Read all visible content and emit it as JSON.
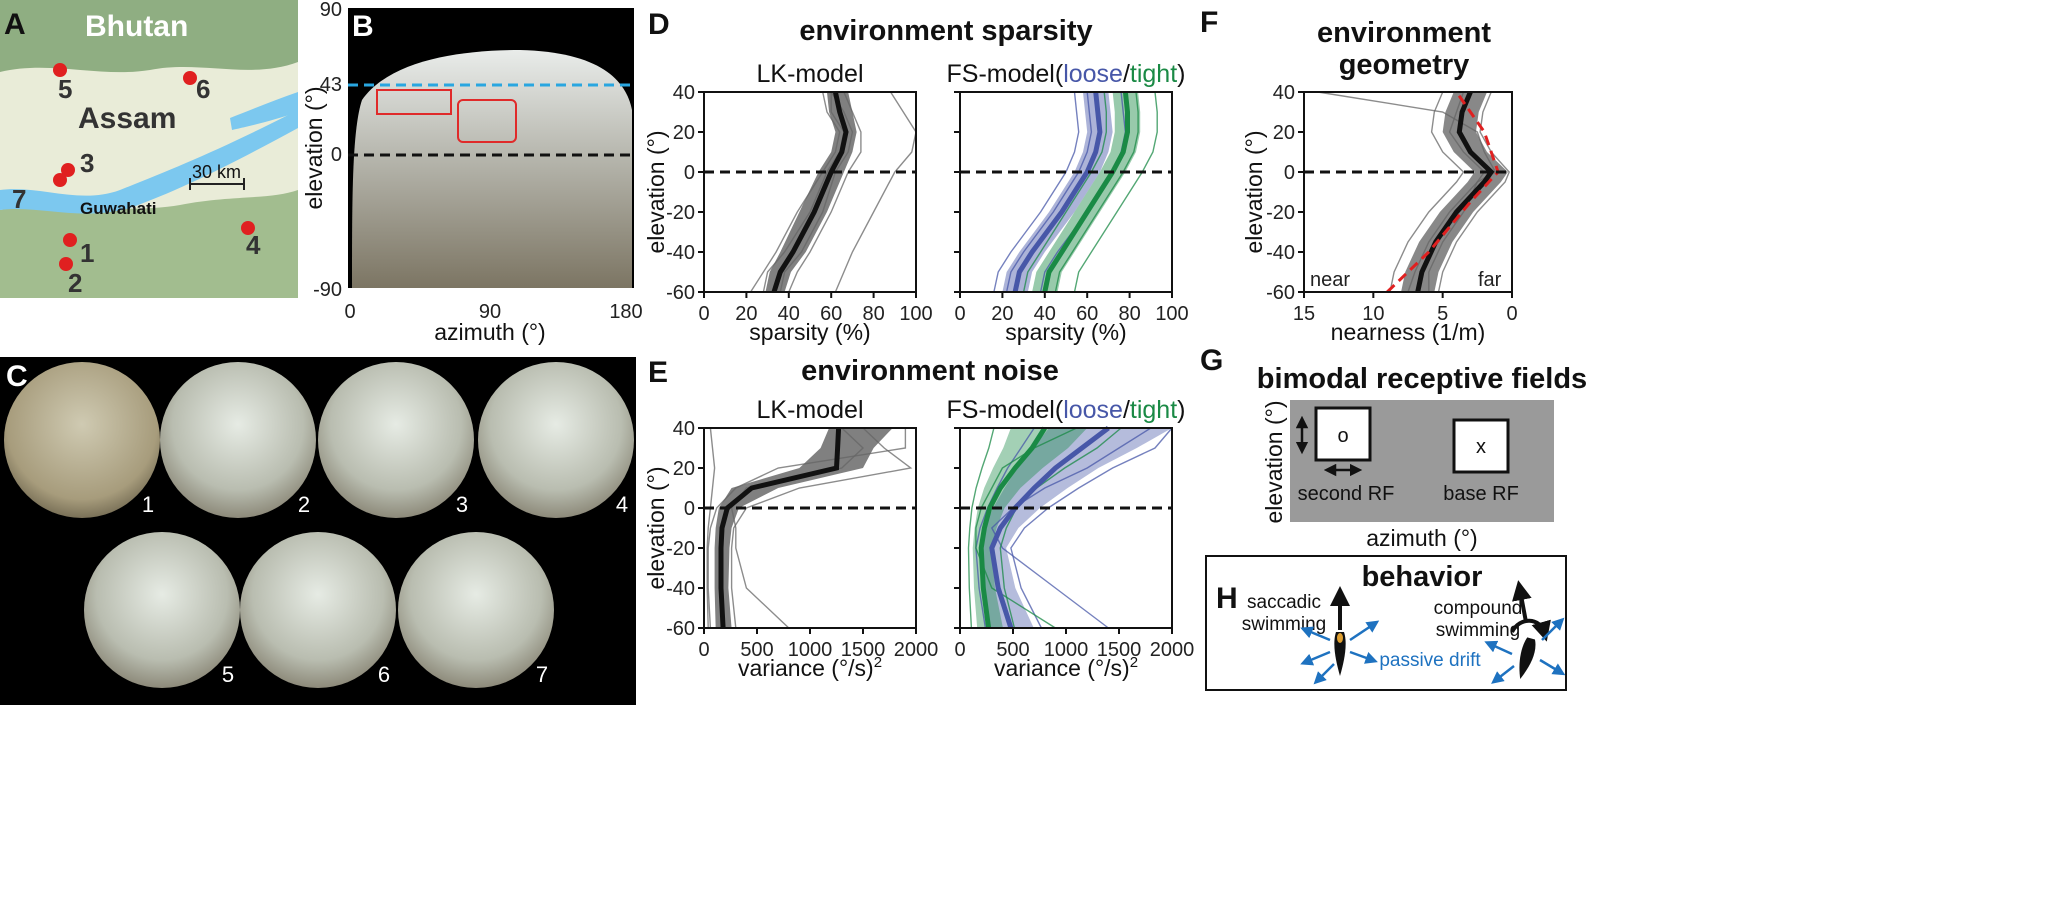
{
  "panels": {
    "A": {
      "label": "A",
      "regions": [
        "Bhutan",
        "Assam"
      ],
      "city": "Guwahati",
      "scale_bar": "30 km",
      "sites": [
        "1",
        "2",
        "3",
        "4",
        "5",
        "6",
        "7"
      ]
    },
    "B": {
      "label": "B",
      "ylabel": "elevation (°)",
      "xlabel": "azimuth (°)",
      "yticks": [
        "90",
        "43",
        "0",
        "-90"
      ],
      "xticks": [
        "0",
        "90",
        "180"
      ],
      "horizon_line_elevation": 43,
      "center_line_elevation": 0
    },
    "C": {
      "label": "C",
      "site_labels": [
        "1",
        "2",
        "3",
        "4",
        "5",
        "6",
        "7"
      ]
    },
    "D": {
      "label": "D",
      "title": "environment sparsity",
      "left_subtitle": "LK-model",
      "right_prefix": "FS-model(",
      "loose": "loose",
      "slash": "/",
      "tight": "tight",
      "right_suffix": ")",
      "ylabel": "elevation (°)",
      "xlabel": "sparsity (%)",
      "yticks": [
        "40",
        "20",
        "0",
        "-20",
        "-40",
        "-60"
      ],
      "xticks": [
        "0",
        "20",
        "40",
        "60",
        "80",
        "100"
      ]
    },
    "E": {
      "label": "E",
      "title": "environment noise",
      "left_subtitle": "LK-model",
      "right_prefix": "FS-model(",
      "loose": "loose",
      "slash": "/",
      "tight": "tight",
      "right_suffix": ")",
      "ylabel": "elevation (°)",
      "xlabel": "variance (°/s)",
      "xlabel_sup": "2",
      "yticks": [
        "40",
        "20",
        "0",
        "-20",
        "-40",
        "-60"
      ],
      "xticks": [
        "0",
        "500",
        "1000",
        "1500",
        "2000"
      ]
    },
    "F": {
      "label": "F",
      "title_line1": "environment",
      "title_line2": "geometry",
      "ylabel": "elevation (°)",
      "xlabel": "nearness (1/m)",
      "near": "near",
      "far": "far",
      "yticks": [
        "40",
        "20",
        "0",
        "-20",
        "-40",
        "-60"
      ],
      "xticks": [
        "15",
        "10",
        "5",
        "0"
      ]
    },
    "G": {
      "label": "G",
      "title": "bimodal receptive fields",
      "second_mark": "o",
      "base_mark": "x",
      "second_label": "second RF",
      "base_label": "base RF",
      "ylabel": "elevation (°)",
      "xlabel": "azimuth (°)"
    },
    "H": {
      "label": "H",
      "title": "behavior",
      "saccadic_line1": "saccadic",
      "saccadic_line2": "swimming",
      "compound_line1": "compound",
      "compound_line2": "swimming",
      "drift": "passive drift"
    }
  },
  "colors": {
    "loose": "#4757a8",
    "tight": "#1a8a45",
    "horizon": "#29a6e0",
    "site_dot": "#e02020",
    "drift_arrow": "#1e72c0"
  },
  "chart_data": [
    {
      "type": "line",
      "panel": "D-LK",
      "title": "LK-model",
      "xlabel": "sparsity (%)",
      "ylabel": "elevation (°)",
      "xlim": [
        0,
        100
      ],
      "ylim": [
        -60,
        40
      ],
      "series": [
        {
          "name": "mean",
          "x": [
            33,
            36,
            42,
            52,
            60,
            65,
            67,
            64,
            62
          ],
          "y": [
            -60,
            -50,
            -40,
            -20,
            0,
            10,
            20,
            30,
            40
          ]
        },
        {
          "name": "band_low",
          "x": [
            29,
            31,
            36,
            45,
            54,
            60,
            62,
            59,
            58
          ],
          "y": [
            -60,
            -50,
            -40,
            -20,
            0,
            10,
            20,
            30,
            40
          ]
        },
        {
          "name": "band_high",
          "x": [
            38,
            41,
            48,
            58,
            66,
            70,
            72,
            70,
            68
          ],
          "y": [
            -60,
            -50,
            -40,
            -20,
            0,
            10,
            20,
            30,
            40
          ]
        }
      ]
    },
    {
      "type": "line",
      "panel": "D-FS",
      "title": "FS-model(loose/tight)",
      "xlabel": "sparsity (%)",
      "ylabel": "elevation (°)",
      "xlim": [
        0,
        100
      ],
      "ylim": [
        -60,
        40
      ],
      "series": [
        {
          "name": "loose",
          "x": [
            26,
            28,
            34,
            48,
            60,
            64,
            66,
            65,
            64
          ],
          "y": [
            -60,
            -50,
            -40,
            -20,
            0,
            10,
            20,
            30,
            40
          ]
        },
        {
          "name": "tight",
          "x": [
            40,
            42,
            48,
            60,
            72,
            77,
            79,
            79,
            78
          ],
          "y": [
            -60,
            -50,
            -40,
            -20,
            0,
            10,
            20,
            30,
            40
          ]
        }
      ]
    },
    {
      "type": "line",
      "panel": "E-LK",
      "title": "LK-model",
      "xlabel": "variance (°/s)2",
      "ylabel": "elevation (°)",
      "xlim": [
        0,
        2000
      ],
      "ylim": [
        -60,
        40
      ],
      "series": [
        {
          "name": "mean",
          "x": [
            180,
            160,
            160,
            170,
            220,
            450,
            1250,
            1260,
            1270
          ],
          "y": [
            -60,
            -40,
            -20,
            -10,
            0,
            10,
            20,
            30,
            40
          ]
        }
      ]
    },
    {
      "type": "line",
      "panel": "E-FS",
      "title": "FS-model(loose/tight)",
      "xlabel": "variance (°/s)2",
      "ylabel": "elevation (°)",
      "xlim": [
        0,
        2000
      ],
      "ylim": [
        -60,
        40
      ],
      "series": [
        {
          "name": "loose",
          "x": [
            480,
            360,
            300,
            380,
            520,
            700,
            900,
            1150,
            1400
          ],
          "y": [
            -60,
            -40,
            -20,
            -10,
            0,
            10,
            20,
            30,
            40
          ]
        },
        {
          "name": "tight",
          "x": [
            270,
            220,
            200,
            230,
            280,
            380,
            520,
            680,
            800
          ],
          "y": [
            -60,
            -40,
            -20,
            -10,
            0,
            10,
            20,
            30,
            40
          ]
        }
      ]
    },
    {
      "type": "line",
      "panel": "F",
      "title": "environment geometry",
      "xlabel": "nearness (1/m)",
      "ylabel": "elevation (°)",
      "xlim": [
        15,
        0
      ],
      "ylim": [
        -60,
        40
      ],
      "series": [
        {
          "name": "mean",
          "x": [
            6.8,
            6.5,
            5.5,
            4,
            2,
            1.5,
            3,
            3.8,
            3.6,
            3
          ],
          "y": [
            -60,
            -50,
            -35,
            -20,
            -5,
            0,
            10,
            20,
            30,
            40
          ]
        },
        {
          "name": "fit",
          "x": [
            9,
            6,
            3,
            1,
            2,
            4
          ],
          "y": [
            -60,
            -40,
            -15,
            0,
            20,
            40
          ]
        }
      ]
    }
  ]
}
